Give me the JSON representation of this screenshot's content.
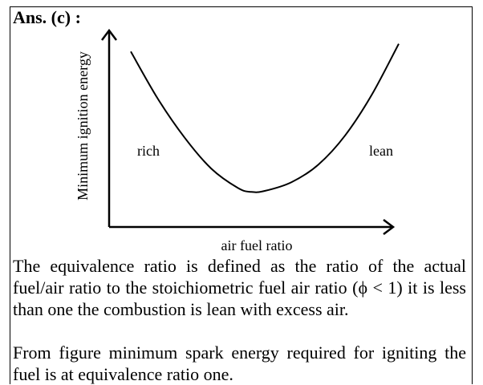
{
  "heading": "Ans. (c) :",
  "chart_data": {
    "type": "line",
    "title": "",
    "xlabel": "air fuel ratio",
    "ylabel": "Minimum ignition energy",
    "annotations": {
      "left": "rich",
      "right": "lean"
    },
    "grid": false,
    "legend": "none",
    "ticks": false,
    "series": [
      {
        "x": [
          0.0,
          0.1,
          0.2,
          0.3,
          0.4,
          0.45,
          0.5,
          0.6,
          0.7,
          0.8,
          0.9,
          1.0
        ],
        "values": [
          0.9,
          0.66,
          0.46,
          0.3,
          0.2,
          0.18,
          0.185,
          0.23,
          0.32,
          0.47,
          0.68,
          0.94
        ]
      }
    ]
  },
  "paragraphs": [
    "The equivalence ratio is defined as the ratio of the actual fuel/air ratio to the stoichiometric fuel air ratio (ϕ < 1) it is less than one the combustion is lean with excess air.",
    "From figure minimum spark energy required for igniting the fuel is at equivalence ratio one."
  ]
}
